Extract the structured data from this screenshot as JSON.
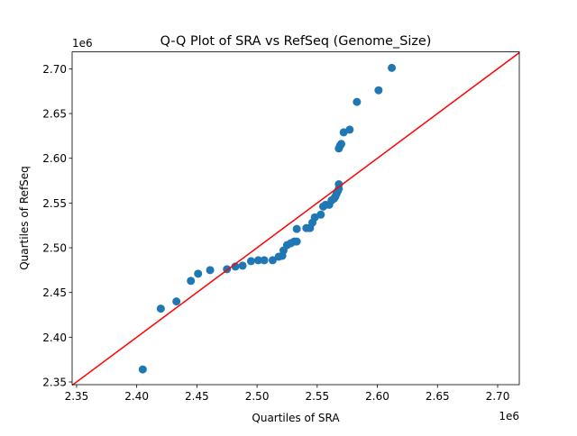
{
  "chart_data": {
    "type": "scatter",
    "title": "Q-Q Plot of SRA vs RefSeq (Genome_Size)",
    "xlabel": "Quartiles of SRA",
    "ylabel": "Quartiles of RefSeq",
    "x_offset_label": "1e6",
    "y_offset_label": "1e6",
    "xlim": [
      2.3463,
      2.718
    ],
    "ylim": [
      2.347,
      2.719
    ],
    "xticks": [
      2.35,
      2.4,
      2.45,
      2.5,
      2.55,
      2.6,
      2.65,
      2.7
    ],
    "xtick_labels": [
      "2.35",
      "2.40",
      "2.45",
      "2.50",
      "2.55",
      "2.60",
      "2.65",
      "2.70"
    ],
    "yticks": [
      2.35,
      2.4,
      2.45,
      2.5,
      2.55,
      2.6,
      2.65,
      2.7
    ],
    "ytick_labels": [
      "2.35",
      "2.40",
      "2.45",
      "2.50",
      "2.55",
      "2.60",
      "2.65",
      "2.70"
    ],
    "grid": false,
    "point_color": "#1f77b4",
    "line_color": "#ff0000",
    "reference_line": {
      "x": [
        2.3463,
        2.718
      ],
      "y": [
        2.3463,
        2.718
      ]
    },
    "points": [
      [
        2.405,
        2.364
      ],
      [
        2.42,
        2.432
      ],
      [
        2.433,
        2.44
      ],
      [
        2.445,
        2.463
      ],
      [
        2.451,
        2.471
      ],
      [
        2.461,
        2.475
      ],
      [
        2.475,
        2.476
      ],
      [
        2.482,
        2.479
      ],
      [
        2.488,
        2.48
      ],
      [
        2.495,
        2.485
      ],
      [
        2.501,
        2.486
      ],
      [
        2.506,
        2.486
      ],
      [
        2.513,
        2.486
      ],
      [
        2.518,
        2.49
      ],
      [
        2.521,
        2.491
      ],
      [
        2.522,
        2.497
      ],
      [
        2.525,
        2.503
      ],
      [
        2.528,
        2.505
      ],
      [
        2.531,
        2.507
      ],
      [
        2.533,
        2.507
      ],
      [
        2.533,
        2.521
      ],
      [
        2.541,
        2.522
      ],
      [
        2.544,
        2.522
      ],
      [
        2.546,
        2.528
      ],
      [
        2.548,
        2.534
      ],
      [
        2.553,
        2.537
      ],
      [
        2.555,
        2.546
      ],
      [
        2.557,
        2.548
      ],
      [
        2.56,
        2.548
      ],
      [
        2.562,
        2.553
      ],
      [
        2.564,
        2.555
      ],
      [
        2.565,
        2.557
      ],
      [
        2.566,
        2.56
      ],
      [
        2.567,
        2.563
      ],
      [
        2.568,
        2.566
      ],
      [
        2.568,
        2.571
      ],
      [
        2.568,
        2.611
      ],
      [
        2.569,
        2.614
      ],
      [
        2.57,
        2.616
      ],
      [
        2.572,
        2.629
      ],
      [
        2.577,
        2.632
      ],
      [
        2.583,
        2.663
      ],
      [
        2.601,
        2.676
      ],
      [
        2.612,
        2.701
      ]
    ]
  }
}
